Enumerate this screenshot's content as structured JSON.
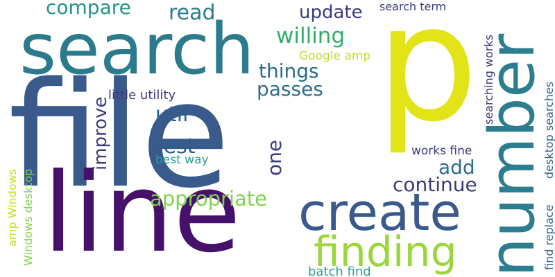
{
  "word_cloud": {
    "background": "#ffffff",
    "words": [
      {
        "text": "p",
        "color": "#e2e418",
        "rotated": false
      },
      {
        "text": "file",
        "color": "#3b5a8c",
        "rotated": false
      },
      {
        "text": "line",
        "color": "#46116a",
        "rotated": false
      },
      {
        "text": "search",
        "color": "#2b7b8c",
        "rotated": false
      },
      {
        "text": "number",
        "color": "#2c7e8e",
        "rotated": true
      },
      {
        "text": "create",
        "color": "#3b5a8c",
        "rotated": false
      },
      {
        "text": "finding",
        "color": "#9cd63f",
        "rotated": false
      },
      {
        "text": "compare",
        "color": "#26938a",
        "rotated": false
      },
      {
        "text": "read",
        "color": "#2b7b8c",
        "rotated": false
      },
      {
        "text": "update",
        "color": "#3b3b7c",
        "rotated": false
      },
      {
        "text": "willing",
        "color": "#31ad6a",
        "rotated": false
      },
      {
        "text": "search term",
        "color": "#3b3d80",
        "rotated": false
      },
      {
        "text": "Google amp",
        "color": "#c3dc2e",
        "rotated": false
      },
      {
        "text": "things",
        "color": "#2b6b8c",
        "rotated": false
      },
      {
        "text": "passes",
        "color": "#2f6e8e",
        "rotated": false
      },
      {
        "text": "little utility",
        "color": "#3b3b7c",
        "rotated": false
      },
      {
        "text": "improve",
        "color": "#3b3b7c",
        "rotated": true
      },
      {
        "text": "util",
        "color": "#2c5f8a",
        "rotated": false
      },
      {
        "text": "rest",
        "color": "#2c5f8a",
        "rotated": false
      },
      {
        "text": "best way",
        "color": "#2ba18f",
        "rotated": false
      },
      {
        "text": "one",
        "color": "#3b3b7c",
        "rotated": true
      },
      {
        "text": "add",
        "color": "#2b6b8c",
        "rotated": false
      },
      {
        "text": "continue",
        "color": "#3b3b7c",
        "rotated": false
      },
      {
        "text": "appropriate",
        "color": "#7fd34e",
        "rotated": false
      },
      {
        "text": "works fine",
        "color": "#3b3b7c",
        "rotated": false
      },
      {
        "text": "searching works",
        "color": "#3b3b7c",
        "rotated": true
      },
      {
        "text": "desktop searches",
        "color": "#2c5f8a",
        "rotated": true
      },
      {
        "text": "find replace",
        "color": "#2c5f8a",
        "rotated": true
      },
      {
        "text": "amp Windows",
        "color": "#c8e020",
        "rotated": true
      },
      {
        "text": "Windows desktop",
        "color": "#82d34c",
        "rotated": true
      },
      {
        "text": "batch find",
        "color": "#2ba18f",
        "rotated": false
      }
    ]
  }
}
